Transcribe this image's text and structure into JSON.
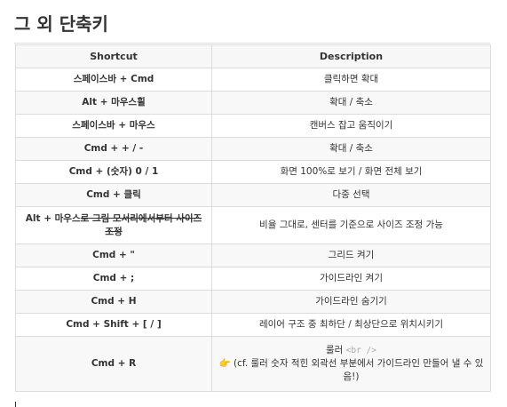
{
  "heading": "그 외 단축키",
  "table": {
    "headers": [
      "Shortcut",
      "Description"
    ],
    "rows": [
      {
        "shortcut": "스페이스바 + Cmd",
        "description": "클릭하면 확대"
      },
      {
        "shortcut": "Alt + 마우스휠",
        "description": "확대 / 축소"
      },
      {
        "shortcut": "스페이스바 + 마우스",
        "description": "캔버스 잡고 움직이기"
      },
      {
        "shortcut": "Cmd  +  + / -",
        "description": "확대 / 축소"
      },
      {
        "shortcut": "Cmd  +  (숫자) 0 / 1",
        "description": "화면 100%로 보기 / 화면 전체 보기"
      },
      {
        "shortcut": "Cmd + 클릭",
        "description": "다중 선택"
      },
      {
        "shortcut_prefix": "Alt + 마우스",
        "shortcut_strike": "로 그림 모서리에서부터 사이즈 조정",
        "description": "비율 그대로, 센터를 기준으로 사이즈 조정 가능"
      },
      {
        "shortcut": "Cmd  +  \"",
        "description": "그리드 켜기"
      },
      {
        "shortcut": "Cmd  +  ;",
        "description": "가이드라인 켜기"
      },
      {
        "shortcut": "Cmd + H",
        "description": "가이드라인 숨기기"
      },
      {
        "shortcut": "Cmd + Shift  +  [  /  ]",
        "description": "레이어 구조 중 최하단 / 최상단으로 위치시키기"
      },
      {
        "shortcut": "Cmd + R",
        "description_line1": "룰러",
        "description_tag": "<br />",
        "description_line2": "👉 (cf. 룰러 숫자 적힌 외곽선 부분에서 가이드라인 만들어 낼 수 있음!)"
      }
    ]
  }
}
